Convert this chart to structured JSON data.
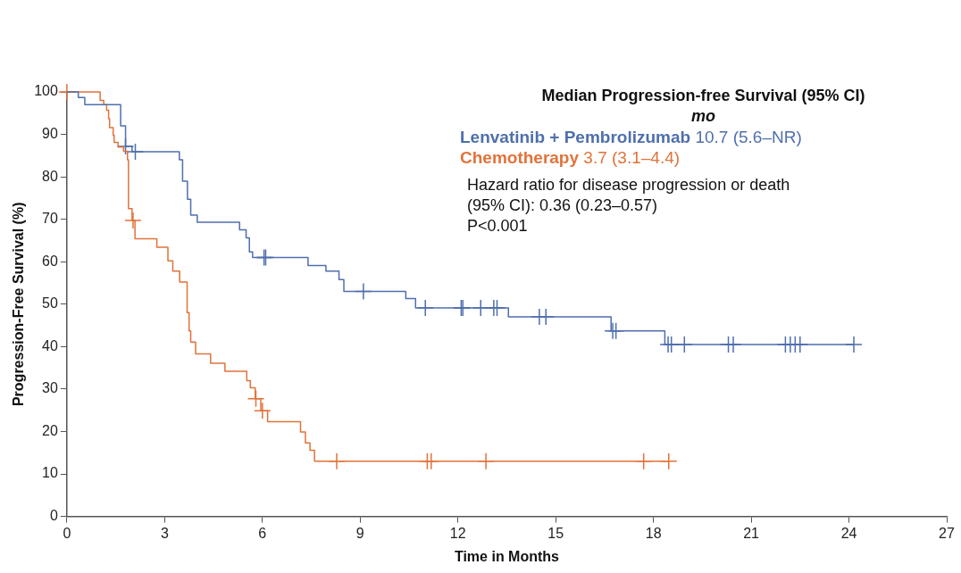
{
  "chart_data": {
    "type": "step",
    "xlabel": "Time in Months",
    "ylabel": "Progression-Free Survival (%)",
    "legend_title": "Median Progression-free Survival (95% CI)",
    "subtitle": "mo",
    "legend": "top right",
    "grid": false,
    "xlim": [
      0,
      27
    ],
    "xticks": [
      0,
      3,
      6,
      9,
      12,
      15,
      18,
      21,
      24,
      27
    ],
    "ylim": [
      0,
      100
    ],
    "yticks": [
      0,
      10,
      20,
      30,
      40,
      50,
      60,
      70,
      80,
      90,
      100
    ],
    "series": [
      {
        "name": "Lenvatinib + Pembrolizumab",
        "color": "#4f6fad",
        "x": [
          0,
          0.35,
          0.55,
          1.65,
          1.8,
          2.0,
          3.45,
          3.55,
          3.7,
          3.8,
          4.0,
          5.3,
          5.5,
          5.6,
          5.7,
          7.4,
          7.95,
          8.35,
          8.5,
          10.4,
          10.7,
          13.55,
          16.7,
          18.35,
          24.15
        ],
        "values": [
          100,
          98.7,
          97,
          92,
          87.2,
          85.9,
          84,
          79,
          74.7,
          71,
          69.3,
          67.5,
          65.6,
          62.3,
          61,
          59.1,
          57.8,
          55.8,
          53,
          51.3,
          49.1,
          47,
          43.7,
          40.5,
          40.5
        ]
      },
      {
        "name": "Chemotherapy",
        "color": "#e0733a",
        "x": [
          0,
          1.02,
          1.13,
          1.22,
          1.28,
          1.31,
          1.42,
          1.45,
          1.57,
          1.74,
          1.86,
          1.89,
          2.0,
          2.09,
          2.76,
          3.1,
          3.25,
          3.46,
          3.69,
          3.75,
          3.8,
          3.95,
          4.41,
          4.85,
          5.52,
          5.63,
          5.78,
          5.95,
          6.16,
          7.17,
          7.32,
          7.46,
          7.6,
          18.47
        ],
        "values": [
          100,
          98,
          97,
          95.7,
          93.7,
          91.6,
          89.8,
          88.1,
          87,
          86,
          84,
          72.5,
          69.7,
          65.4,
          63.4,
          60.2,
          57.8,
          55.2,
          48,
          43.7,
          41.1,
          38.3,
          36.1,
          34.2,
          32,
          30.3,
          27.7,
          24.9,
          22.3,
          19.9,
          17.3,
          15.6,
          13,
          13
        ]
      },
      {
        "type": "scatter",
        "marker": "cross",
        "color": "#4f6fad",
        "x": [
          1.8,
          2.1,
          6.05,
          6.1,
          9.1,
          11.0,
          12.1,
          12.15,
          12.7,
          13.1,
          13.2,
          14.5,
          14.7,
          16.75,
          16.85,
          18.45,
          18.55,
          18.95,
          20.3,
          20.45,
          22.05,
          22.2,
          22.35,
          22.5,
          24.15
        ],
        "values": [
          87.2,
          85.9,
          61,
          61,
          53,
          49.1,
          49.1,
          49.1,
          49.1,
          49.1,
          49.1,
          47,
          47,
          43.7,
          43.7,
          40.5,
          40.5,
          40.5,
          40.5,
          40.5,
          40.5,
          40.5,
          40.5,
          40.5,
          40.5
        ]
      },
      {
        "type": "scatter",
        "marker": "cross",
        "color": "#e0733a",
        "x": [
          0,
          2.03,
          5.8,
          6.0,
          8.28,
          11.06,
          11.18,
          12.86,
          17.7,
          18.47
        ],
        "values": [
          100,
          69.7,
          27.7,
          24.9,
          13,
          13,
          13,
          13,
          13,
          13
        ]
      }
    ],
    "annotations": [
      "10.7 (5.6–NR)",
      "3.7 (3.1–4.4)",
      "Hazard ratio for disease progression or death",
      "(95% CI): 0.36 (0.23–0.57)",
      "P<0.001"
    ]
  }
}
